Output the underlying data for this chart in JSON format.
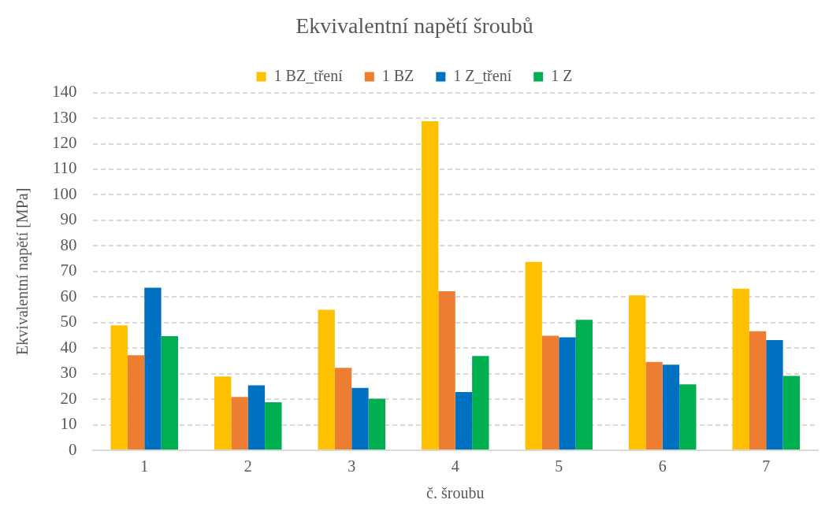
{
  "chart_data": {
    "type": "bar",
    "title": "Ekvivalentní napětí šroubů",
    "xlabel": "č. šroubu",
    "ylabel": "Ekvivalentní napětí [MPa]",
    "categories": [
      "1",
      "2",
      "3",
      "4",
      "5",
      "6",
      "7"
    ],
    "series": [
      {
        "name": "1 BZ_tření",
        "color": "#ffc000",
        "values": [
          48.9,
          28.9,
          55.0,
          128.8,
          73.7,
          60.6,
          63.2
        ]
      },
      {
        "name": "1 BZ",
        "color": "#ed7d31",
        "values": [
          37.2,
          20.9,
          32.3,
          62.2,
          44.8,
          34.6,
          46.6
        ]
      },
      {
        "name": "1 Z_tření",
        "color": "#0070c0",
        "values": [
          63.6,
          25.4,
          24.4,
          22.8,
          44.2,
          33.5,
          43.1
        ]
      },
      {
        "name": "1 Z",
        "color": "#00b050",
        "values": [
          44.7,
          18.8,
          20.2,
          36.9,
          51.1,
          25.8,
          29.1
        ]
      }
    ],
    "ylim": [
      0,
      140
    ],
    "yticks": [
      0,
      10,
      20,
      30,
      40,
      50,
      60,
      70,
      80,
      90,
      100,
      110,
      120,
      130,
      140
    ],
    "grid": "y",
    "legend": "top"
  }
}
